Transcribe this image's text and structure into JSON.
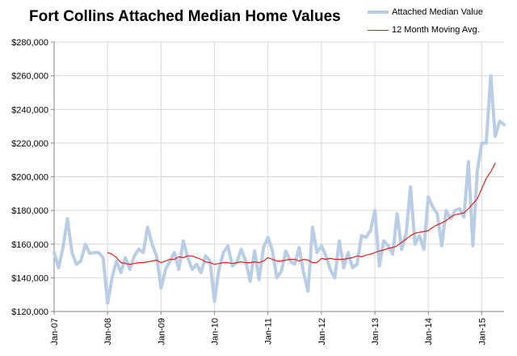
{
  "chart_data": {
    "type": "line",
    "title": "Fort Collins Attached Median Home Values",
    "xlabel": "",
    "ylabel": "",
    "ylim": [
      120000,
      280000
    ],
    "y_ticks": [
      "$120,000",
      "$140,000",
      "$160,000",
      "$180,000",
      "$200,000",
      "$220,000",
      "$240,000",
      "$260,000",
      "$280,000"
    ],
    "x_ticks": [
      "Jan-07",
      "Jan-08",
      "Jan-09",
      "Jan-10",
      "Jan-11",
      "Jan-12",
      "Jan-13",
      "Jan-14",
      "Jan-15"
    ],
    "x_start": "Jan-07",
    "x_end": "May-15",
    "grid": "vertical and horizontal",
    "legend_position": "top-right",
    "series": [
      {
        "name": "Attached Median Value",
        "color": "#b9cde4",
        "values": [
          155000,
          146000,
          158000,
          175000,
          155000,
          148000,
          150000,
          160000,
          154500,
          155000,
          155000,
          152000,
          125000,
          140000,
          150000,
          143000,
          152000,
          145000,
          153000,
          157000,
          155000,
          170000,
          160000,
          153000,
          134000,
          145000,
          150000,
          155000,
          145000,
          162000,
          152000,
          145000,
          148000,
          143000,
          153000,
          150000,
          126000,
          145000,
          155000,
          159000,
          147000,
          149000,
          157000,
          150000,
          138000,
          156000,
          139000,
          158000,
          164000,
          156000,
          140000,
          144000,
          156000,
          150000,
          148000,
          158000,
          143000,
          132000,
          170000,
          155000,
          159000,
          153000,
          145000,
          140000,
          162000,
          146000,
          155000,
          146000,
          148000,
          165000,
          164000,
          168000,
          180000,
          147000,
          162000,
          159000,
          154000,
          178000,
          157000,
          166000,
          194000,
          160000,
          165000,
          157000,
          188000,
          182000,
          178000,
          159000,
          180000,
          175000,
          180000,
          181000,
          176000,
          209000,
          159000,
          204000,
          220000,
          220000,
          260000,
          224000,
          233000,
          231000
        ]
      },
      {
        "name": "12 Month Moving Avg.",
        "color": "#e02020",
        "start_index": 12,
        "values": [
          155000,
          154000,
          152000,
          149000,
          148500,
          148000,
          148500,
          149000,
          149000,
          149500,
          150000,
          150500,
          149000,
          150000,
          151000,
          151000,
          152500,
          152000,
          153000,
          153000,
          152000,
          151000,
          149500,
          149000,
          148000,
          148500,
          149000,
          149000,
          148500,
          149000,
          149500,
          149000,
          149000,
          149500,
          149000,
          150000,
          152000,
          151000,
          150000,
          150000,
          150500,
          151000,
          151000,
          150000,
          151000,
          150500,
          149000,
          149000,
          151500,
          151000,
          151500,
          151000,
          151000,
          151000,
          151500,
          152000,
          153000,
          152500,
          153500,
          154000,
          155000,
          156000,
          156500,
          157500,
          158000,
          159000,
          161000,
          163000,
          165000,
          166500,
          167000,
          167500,
          168000,
          170000,
          171500,
          172500,
          174000,
          176000,
          177500,
          178000,
          178500,
          181000,
          184000,
          187000,
          193000,
          199000,
          203000,
          208000
        ]
      }
    ]
  }
}
